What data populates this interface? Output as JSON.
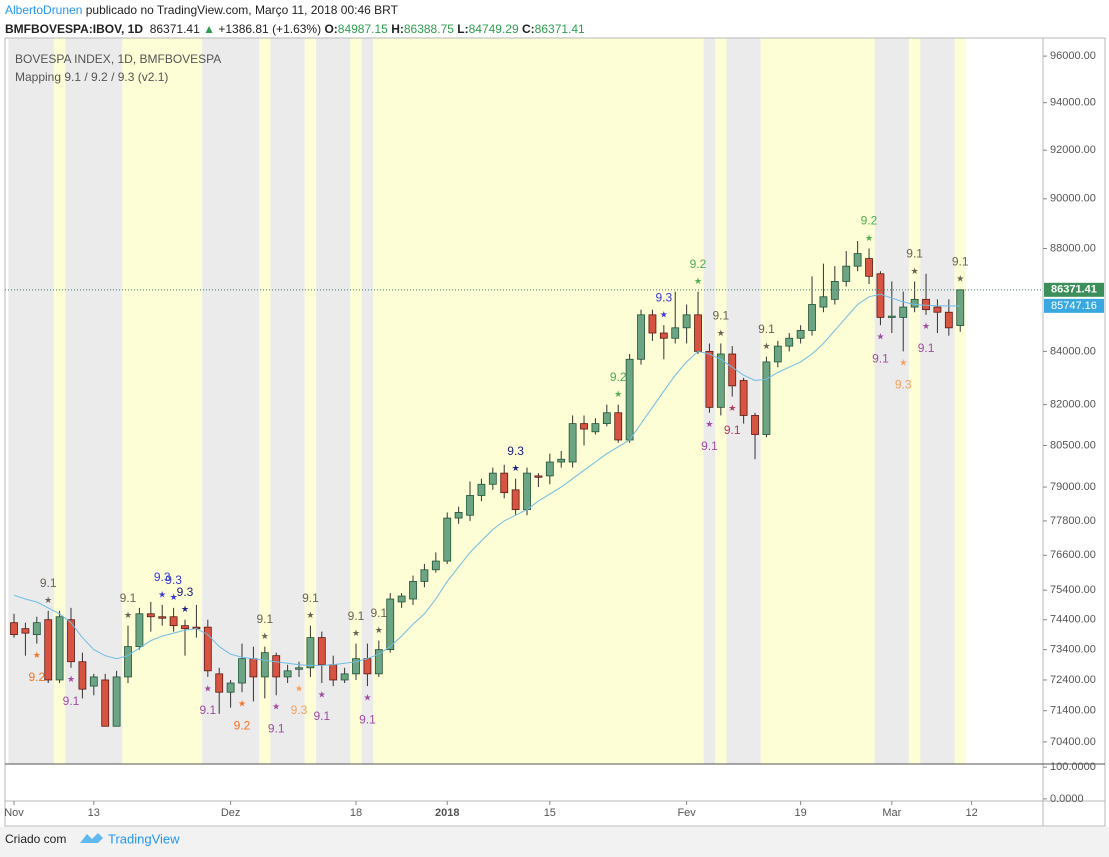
{
  "header": {
    "author": "AlbertoDrunen",
    "published": "publicado no TradingView.com, Março 11, 2018 00:46 BRT",
    "symbol": "BMFBOVESPA:IBOV, 1D",
    "price": 86371.41,
    "arrow": "▲",
    "change": "+1386.81 (+1.63%)",
    "open_label": "O:",
    "open": 84987.15,
    "high_label": "H:",
    "high": 86388.75,
    "low_label": "L:",
    "low": 84749.29,
    "close_label": "C:",
    "close": 86371.41
  },
  "chart_data": [
    {
      "type": "candlestick",
      "title": "BOVESPA INDEX, 1D, BMFBOVESPA",
      "subtitle": "Mapping 9.1 / 9.2 / 9.3 (v2.1)",
      "open": [
        74300,
        74100,
        73900,
        74400,
        72400,
        74400,
        73000,
        72200,
        72400,
        70900,
        72500,
        73500,
        74600,
        74500,
        74500,
        74200,
        74150,
        74150,
        72600,
        72000,
        72300,
        73100,
        72500,
        73200,
        72500,
        72750,
        72800,
        73800,
        72900,
        72400,
        72600,
        73100,
        72600,
        73400,
        75000,
        75100,
        75700,
        76100,
        76400,
        77900,
        78000,
        78700,
        79100,
        79500,
        78900,
        78200,
        79400,
        79400,
        79900,
        79900,
        81300,
        81000,
        81300,
        81700,
        80700,
        83700,
        85400,
        84700,
        84500,
        84900,
        85400,
        84000,
        81900,
        83900,
        82900,
        81600,
        80900,
        83600,
        84200,
        84500,
        84800,
        85700,
        86000,
        86700,
        87300,
        87600,
        87000,
        85300,
        85300,
        85700,
        86000,
        85700,
        85500,
        84987.15
      ],
      "high": [
        74600,
        74300,
        74500,
        74700,
        74700,
        74800,
        73300,
        72600,
        72600,
        72700,
        74200,
        74800,
        75000,
        74900,
        74800,
        74400,
        74900,
        74400,
        72800,
        72400,
        73600,
        73500,
        73500,
        73300,
        72900,
        73000,
        74200,
        74000,
        73200,
        72800,
        73600,
        73600,
        73700,
        75300,
        75300,
        75900,
        76300,
        76700,
        78100,
        78300,
        79200,
        79300,
        79700,
        79800,
        79300,
        79700,
        79500,
        80200,
        80300,
        81600,
        81600,
        81500,
        82000,
        82000,
        83900,
        85600,
        85600,
        85000,
        86300,
        85800,
        86300,
        84300,
        84300,
        84200,
        83000,
        81700,
        83800,
        84400,
        84700,
        85000,
        86900,
        87400,
        87300,
        87900,
        88300,
        88000,
        87100,
        86700,
        86300,
        86700,
        87000,
        86000,
        86000,
        86388.75
      ],
      "low": [
        73800,
        73200,
        73600,
        72300,
        72300,
        72800,
        71800,
        71900,
        70900,
        70900,
        72300,
        73400,
        74000,
        74200,
        74000,
        73200,
        73800,
        72500,
        71300,
        71500,
        72000,
        71700,
        71800,
        71900,
        72300,
        72500,
        72500,
        72300,
        72200,
        72300,
        72400,
        72200,
        72500,
        73300,
        74800,
        74900,
        75500,
        76000,
        76300,
        77700,
        77800,
        78500,
        78900,
        78600,
        78000,
        78000,
        79000,
        79100,
        79700,
        79700,
        80500,
        80900,
        81200,
        80600,
        80600,
        83500,
        84400,
        83700,
        84300,
        84300,
        83900,
        81700,
        81600,
        82300,
        81300,
        80000,
        80800,
        83400,
        84000,
        84300,
        84600,
        85500,
        85800,
        86500,
        87100,
        86600,
        85000,
        84700,
        84000,
        85500,
        85400,
        84700,
        84600,
        84749.29
      ],
      "close": [
        73900,
        73950,
        74300,
        72400,
        74500,
        73000,
        72100,
        72500,
        70900,
        72500,
        73500,
        74600,
        74500,
        74450,
        74200,
        74100,
        74100,
        72700,
        72000,
        72300,
        73100,
        72500,
        73300,
        72500,
        72700,
        72800,
        73800,
        72900,
        72400,
        72600,
        73100,
        72600,
        73400,
        75100,
        75200,
        75700,
        76100,
        76400,
        77900,
        78100,
        78700,
        79100,
        79500,
        78800,
        78200,
        79500,
        79350,
        79900,
        80000,
        81300,
        81100,
        81300,
        81700,
        80700,
        83700,
        85400,
        84700,
        84500,
        84900,
        85400,
        84000,
        81900,
        83900,
        82700,
        81600,
        80900,
        83600,
        84200,
        84500,
        84800,
        85800,
        86100,
        86700,
        87300,
        87800,
        86900,
        85300,
        85350,
        85700,
        86000,
        85600,
        85500,
        84900,
        86371.41
      ],
      "up_color": "#6ba583",
      "down_color": "#d75442",
      "ma": {
        "color": "#6fbde3",
        "values": [
          75230,
          75100,
          75000,
          74800,
          74600,
          74300,
          73800,
          73400,
          73200,
          73100,
          73200,
          73450,
          73700,
          73850,
          73950,
          74050,
          74100,
          73900,
          73500,
          73250,
          73150,
          73100,
          73050,
          73000,
          72950,
          72900,
          72880,
          72880,
          72900,
          72950,
          73000,
          73100,
          73250,
          73500,
          73850,
          74250,
          74600,
          75100,
          75700,
          76200,
          76700,
          77100,
          77500,
          77800,
          78000,
          78200,
          78500,
          78750,
          79000,
          79300,
          79600,
          79900,
          80200,
          80450,
          80700,
          81300,
          81900,
          82500,
          83100,
          83600,
          84000,
          83900,
          83700,
          83400,
          83100,
          82900,
          82950,
          83200,
          83400,
          83600,
          83900,
          84300,
          84800,
          85300,
          85800,
          86100,
          86200,
          86050,
          85900,
          85800,
          85770,
          85750,
          85740,
          85747.16
        ]
      },
      "xlim": [
        -0.79,
        90.26
      ],
      "xticks": [
        {
          "value": 0,
          "label": "Nov"
        },
        {
          "value": 7,
          "label": "13"
        },
        {
          "value": 19,
          "label": "Dez"
        },
        {
          "value": 30,
          "label": "18"
        },
        {
          "value": 38,
          "label": "2018"
        },
        {
          "value": 47,
          "label": "15"
        },
        {
          "value": 59,
          "label": "Fev"
        },
        {
          "value": 69,
          "label": "19"
        },
        {
          "value": 77,
          "label": "Mar"
        },
        {
          "value": 84,
          "label": "12"
        }
      ],
      "ylim": [
        69700,
        96790
      ],
      "log_scale": true,
      "yticks": [
        {
          "value": 96000,
          "label": "96000.00"
        },
        {
          "value": 94000,
          "label": "94000.00"
        },
        {
          "value": 92000,
          "label": "92000.00"
        },
        {
          "value": 90000,
          "label": "90000.00"
        },
        {
          "value": 88000,
          "label": "88000.00"
        },
        {
          "value": 84000,
          "label": "84000.00"
        },
        {
          "value": 82000,
          "label": "82000.00"
        },
        {
          "value": 80500,
          "label": "80500.00"
        },
        {
          "value": 79000,
          "label": "79000.00"
        },
        {
          "value": 77800,
          "label": "77800.00"
        },
        {
          "value": 76600,
          "label": "76600.00"
        },
        {
          "value": 75400,
          "label": "75400.00"
        },
        {
          "value": 74400,
          "label": "74400.00"
        },
        {
          "value": 73400,
          "label": "73400.00"
        },
        {
          "value": 72400,
          "label": "72400.00"
        },
        {
          "value": 71400,
          "label": "71400.00"
        },
        {
          "value": 70400,
          "label": "70400.00"
        }
      ],
      "last_price_line": true,
      "bands": [
        {
          "from": 0,
          "to": 3,
          "color": "#ebebeb"
        },
        {
          "from": 4,
          "to": 4,
          "color": "#fdfdd6"
        },
        {
          "from": 5,
          "to": 9,
          "color": "#ebebeb"
        },
        {
          "from": 10,
          "to": 16,
          "color": "#fdfdd6"
        },
        {
          "from": 17,
          "to": 21,
          "color": "#ebebeb"
        },
        {
          "from": 22,
          "to": 22,
          "color": "#fdfdd6"
        },
        {
          "from": 23,
          "to": 25,
          "color": "#ebebeb"
        },
        {
          "from": 26,
          "to": 26,
          "color": "#fdfdd6"
        },
        {
          "from": 27,
          "to": 29,
          "color": "#ebebeb"
        },
        {
          "from": 30,
          "to": 30,
          "color": "#fdfdd6"
        },
        {
          "from": 31,
          "to": 31,
          "color": "#ebebeb"
        },
        {
          "from": 32,
          "to": 60,
          "color": "#fdfdd6"
        },
        {
          "from": 61,
          "to": 61,
          "color": "#ebebeb"
        },
        {
          "from": 62,
          "to": 62,
          "color": "#fdfdd6"
        },
        {
          "from": 63,
          "to": 65,
          "color": "#ebebeb"
        },
        {
          "from": 66,
          "to": 75,
          "color": "#fdfdd6"
        },
        {
          "from": 76,
          "to": 78,
          "color": "#ebebeb"
        },
        {
          "from": 79,
          "to": 79,
          "color": "#fdfdd6"
        },
        {
          "from": 80,
          "to": 82,
          "color": "#ebebeb"
        },
        {
          "from": 83,
          "to": 83,
          "color": "#fdfdd6"
        }
      ],
      "annotations": [
        {
          "index": 2,
          "label": "9.2",
          "position": "below",
          "color": "#f0742a"
        },
        {
          "index": 3,
          "label": "9.1",
          "position": "above",
          "color": "#6b6256"
        },
        {
          "index": 5,
          "label": "9.1",
          "position": "below",
          "color": "#a04ca0"
        },
        {
          "index": 10,
          "label": "9.1",
          "position": "above",
          "color": "#6b6256"
        },
        {
          "index": 13,
          "label": "9.3",
          "position": "above",
          "color": "#3a3ad6"
        },
        {
          "index": 14,
          "label": "9.3",
          "position": "above",
          "color": "#3a3ad6"
        },
        {
          "index": 15,
          "label": "9.3",
          "position": "above",
          "color": "#1a237e"
        },
        {
          "index": 17,
          "label": "9.1",
          "position": "below",
          "color": "#a04ca0"
        },
        {
          "index": 20,
          "label": "9.2",
          "position": "below",
          "color": "#f0742a"
        },
        {
          "index": 22,
          "label": "9.1",
          "position": "above",
          "color": "#6b6256"
        },
        {
          "index": 23,
          "label": "9.1",
          "position": "below",
          "color": "#a04ca0"
        },
        {
          "index": 25,
          "label": "9.3",
          "position": "below",
          "color": "#f5a05a"
        },
        {
          "index": 26,
          "label": "9.1",
          "position": "above",
          "color": "#6b6256"
        },
        {
          "index": 27,
          "label": "9.1",
          "position": "below",
          "color": "#a04ca0"
        },
        {
          "index": 30,
          "label": "9.1",
          "position": "above",
          "color": "#6b6256"
        },
        {
          "index": 31,
          "label": "9.1",
          "position": "below",
          "color": "#a04ca0"
        },
        {
          "index": 32,
          "label": "9.1",
          "position": "above",
          "color": "#6b6256"
        },
        {
          "index": 44,
          "label": "9.3",
          "position": "above",
          "color": "#1a237e"
        },
        {
          "index": 53,
          "label": "9.2",
          "position": "above",
          "color": "#4caf50"
        },
        {
          "index": 57,
          "label": "9.3",
          "position": "above",
          "color": "#3a3ad6"
        },
        {
          "index": 60,
          "label": "9.2",
          "position": "above",
          "color": "#4caf50"
        },
        {
          "index": 61,
          "label": "9.1",
          "position": "below",
          "color": "#a04ca0"
        },
        {
          "index": 62,
          "label": "9.1",
          "position": "above",
          "color": "#6b6256"
        },
        {
          "index": 63,
          "label": "9.1",
          "position": "below",
          "color": "#b03a5a"
        },
        {
          "index": 66,
          "label": "9.1",
          "position": "above",
          "color": "#6b6256"
        },
        {
          "index": 75,
          "label": "9.2",
          "position": "above",
          "color": "#4caf50"
        },
        {
          "index": 76,
          "label": "9.1",
          "position": "below",
          "color": "#a04ca0"
        },
        {
          "index": 78,
          "label": "9.3",
          "position": "below",
          "color": "#f5a05a"
        },
        {
          "index": 79,
          "label": "9.1",
          "position": "above",
          "color": "#6b6256"
        },
        {
          "index": 80,
          "label": "9.1",
          "position": "below",
          "color": "#a04ca0"
        },
        {
          "index": 83,
          "label": "9.1",
          "position": "above",
          "color": "#6b6256"
        }
      ]
    },
    {
      "type": "indicator",
      "ylim": [
        -6.7,
        110
      ],
      "yticks": [
        {
          "value": 100,
          "label": "100.0000"
        },
        {
          "value": 0,
          "label": "0.0000"
        }
      ]
    }
  ],
  "footer": {
    "text": "Criado com",
    "brand": "TradingView"
  }
}
